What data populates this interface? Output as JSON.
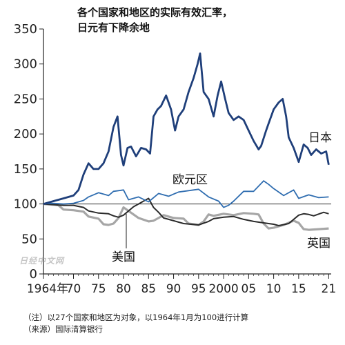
{
  "header": {
    "title_line1": "各个国家和地区的实际有效汇率，",
    "title_line2": "日元有下降余地"
  },
  "footnotes": {
    "note": "（注）以27个国家和地区为对象，以1964年1月为100进行计算",
    "source": "（来源）国际清算银行"
  },
  "watermark": "日经中文网",
  "chart_data": {
    "type": "line",
    "title": "各个国家和地区的实际有效汇率，日元有下降余地",
    "xlabel": "",
    "ylabel": "",
    "xlim": [
      1964,
      2021.5
    ],
    "ylim": [
      0,
      350
    ],
    "y_ticks": [
      0,
      50,
      100,
      150,
      200,
      250,
      300,
      350
    ],
    "x_ticks": [
      {
        "value": 1964,
        "label": "1964年"
      },
      {
        "value": 1970,
        "label": "70"
      },
      {
        "value": 1975,
        "label": "75"
      },
      {
        "value": 1980,
        "label": "80"
      },
      {
        "value": 1985,
        "label": "85"
      },
      {
        "value": 1990,
        "label": "90"
      },
      {
        "value": 1995,
        "label": "95"
      },
      {
        "value": 2000,
        "label": "2000"
      },
      {
        "value": 2005,
        "label": "05"
      },
      {
        "value": 2010,
        "label": "10"
      },
      {
        "value": 2015,
        "label": "15"
      },
      {
        "value": 2021,
        "label": "21"
      }
    ],
    "reference_line": 100,
    "grid": false,
    "series": [
      {
        "name": "日本",
        "color": "#1f3f7a",
        "x": [
          1964,
          1966,
          1968,
          1970,
          1971,
          1972,
          1973,
          1974,
          1975,
          1976,
          1977,
          1978,
          1978.8,
          1979.5,
          1980,
          1980.8,
          1981.5,
          1982.5,
          1983.5,
          1984.5,
          1985.3,
          1986,
          1986.8,
          1987.5,
          1988.5,
          1989.5,
          1990.3,
          1991,
          1992,
          1993,
          1994,
          1994.8,
          1995.3,
          1996,
          1997,
          1998,
          1998.8,
          1999.5,
          2000.3,
          2001,
          2002,
          2003,
          2004,
          2005,
          2006,
          2007,
          2007.5,
          2008.5,
          2009,
          2010,
          2011,
          2011.8,
          2012.5,
          2013,
          2014,
          2015,
          2016,
          2016.8,
          2017.5,
          2018.5,
          2019.5,
          2020.5,
          2021
        ],
        "y": [
          100,
          104,
          108,
          112,
          120,
          142,
          158,
          150,
          150,
          158,
          175,
          210,
          225,
          170,
          155,
          180,
          182,
          168,
          180,
          178,
          172,
          225,
          235,
          240,
          255,
          235,
          205,
          225,
          235,
          260,
          280,
          300,
          315,
          260,
          250,
          225,
          255,
          275,
          250,
          230,
          220,
          225,
          220,
          205,
          190,
          178,
          183,
          205,
          215,
          235,
          245,
          250,
          225,
          195,
          180,
          160,
          185,
          180,
          170,
          178,
          172,
          175,
          156
        ]
      },
      {
        "name": "欧元区",
        "color": "#2f6db0",
        "x": [
          1964,
          1966,
          1968,
          1970,
          1972,
          1973,
          1975,
          1977,
          1978,
          1980,
          1981,
          1983,
          1985,
          1987,
          1989,
          1991,
          1993,
          1995,
          1997,
          1999,
          2000,
          2001,
          2002,
          2004,
          2006,
          2008,
          2009,
          2010,
          2012,
          2014,
          2015,
          2017,
          2019,
          2021
        ],
        "y": [
          100,
          101,
          100,
          101,
          105,
          110,
          116,
          112,
          118,
          120,
          106,
          110,
          103,
          115,
          111,
          117,
          119,
          121,
          110,
          104,
          95,
          98,
          104,
          118,
          118,
          133,
          128,
          122,
          112,
          120,
          108,
          113,
          109,
          110
        ]
      },
      {
        "name": "美国",
        "color": "#2b2b2b",
        "x": [
          1964,
          1966,
          1968,
          1970,
          1972,
          1973,
          1975,
          1977,
          1978,
          1979,
          1980,
          1981,
          1982,
          1983,
          1984,
          1985,
          1986,
          1987,
          1988,
          1990,
          1992,
          1995,
          1997,
          1998,
          2000,
          2002,
          2004,
          2006,
          2008,
          2010,
          2011,
          2013,
          2015,
          2016,
          2017,
          2018,
          2020,
          2021
        ],
        "y": [
          100,
          99,
          98,
          98,
          95,
          90,
          87,
          86,
          83,
          81,
          84,
          90,
          96,
          100,
          104,
          108,
          95,
          88,
          80,
          76,
          72,
          70,
          75,
          79,
          81,
          82,
          78,
          75,
          73,
          71,
          69,
          72,
          84,
          86,
          85,
          83,
          88,
          86
        ]
      },
      {
        "name": "英国",
        "color": "#a6a6a6",
        "x": [
          1964,
          1966,
          1967,
          1968,
          1970,
          1972,
          1973,
          1975,
          1976,
          1977,
          1978,
          1979,
          1980,
          1981,
          1983,
          1985,
          1986,
          1987,
          1988,
          1990,
          1992,
          1993,
          1995,
          1996,
          1997,
          1998,
          2000,
          2002,
          2004,
          2006,
          2007,
          2008,
          2009,
          2010,
          2012,
          2014,
          2015,
          2016,
          2017,
          2019,
          2021
        ],
        "y": [
          100,
          99,
          98,
          92,
          91,
          89,
          82,
          79,
          71,
          70,
          72,
          80,
          95,
          90,
          80,
          75,
          76,
          80,
          84,
          80,
          79,
          72,
          70,
          75,
          85,
          83,
          86,
          84,
          87,
          86,
          85,
          72,
          65,
          66,
          70,
          76,
          73,
          64,
          63,
          64,
          65
        ]
      }
    ]
  }
}
